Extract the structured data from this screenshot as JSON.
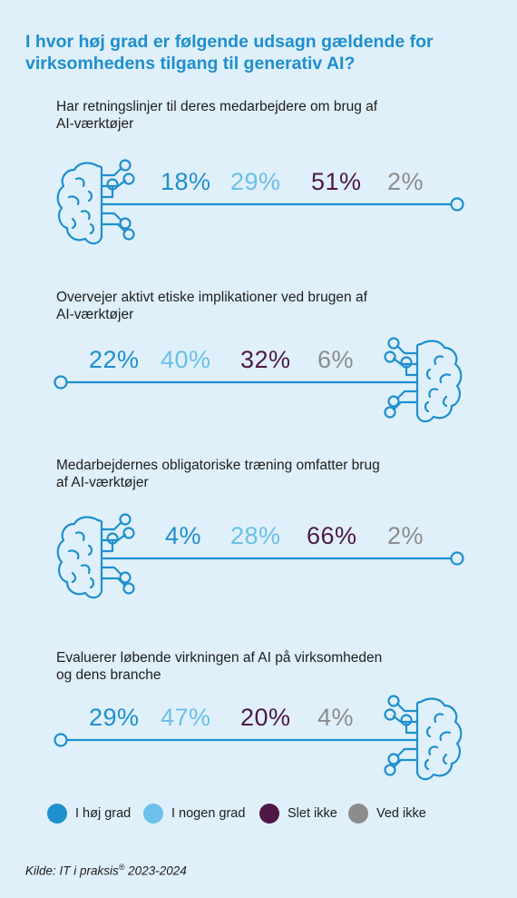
{
  "title": "I hvor høj grad er følgende udsagn gældende for virksomhedens tilgang til generativ AI?",
  "legend": [
    {
      "label": "I høj grad",
      "color": "#1f8fce"
    },
    {
      "label": "I nogen grad",
      "color": "#6cc0ea"
    },
    {
      "label": "Slet ikke",
      "color": "#4e1846"
    },
    {
      "label": "Ved ikke",
      "color": "#8c8c8c"
    }
  ],
  "source_text": "Kilde: IT i praksis",
  "source_reg": "®",
  "source_year": " 2023-2024",
  "icons": [
    "brain-circuit-icon"
  ],
  "chart_data": {
    "type": "table",
    "columns": [
      "I høj grad",
      "I nogen grad",
      "Slet ikke",
      "Ved ikke"
    ],
    "rows": [
      {
        "statement": "Har retningslinjer til deres medarbejdere om brug af AI-værktøjer",
        "values": [
          "18%",
          "29%",
          "51%",
          "2%"
        ]
      },
      {
        "statement": "Overvejer aktivt etiske implikationer ved brugen af AI-værktøjer",
        "values": [
          "22%",
          "40%",
          "32%",
          "6%"
        ]
      },
      {
        "statement": "Medarbejdernes obligatoriske træning omfatter brug af AI-værktøjer",
        "values": [
          "4%",
          "28%",
          "66%",
          "2%"
        ]
      },
      {
        "statement": "Evaluerer løbende virkningen af AI på virksomheden og dens branche",
        "values": [
          "29%",
          "47%",
          "20%",
          "4%"
        ]
      }
    ]
  }
}
